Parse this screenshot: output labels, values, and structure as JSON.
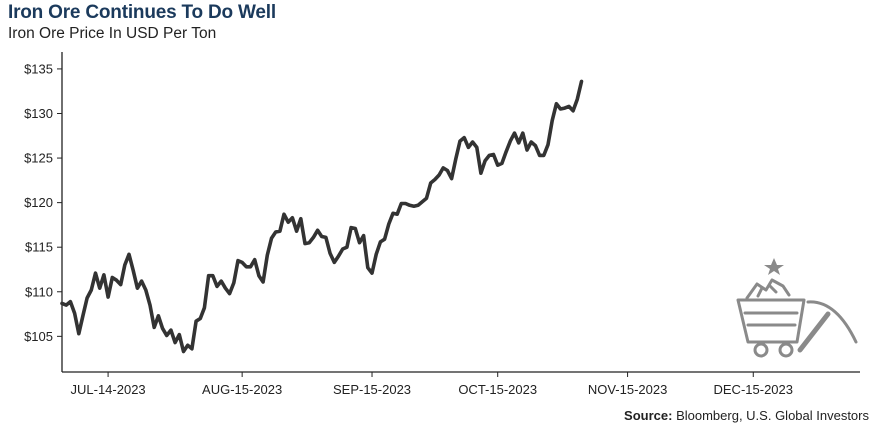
{
  "title": "Iron Ore Continues To Do Well",
  "subtitle": "Iron Ore Price In USD Per Ton",
  "source_label": "Source:",
  "source_text": "Bloomberg, U.S. Global Investors",
  "colors": {
    "title": "#1b3a5c",
    "line": "#333333",
    "icon": "#8a8a8a"
  },
  "icon": "mining-cart-pickaxe-icon",
  "chart_data": {
    "type": "line",
    "title": "Iron Ore Continues To Do Well",
    "subtitle": "Iron Ore Price In USD Per Ton",
    "ylim": [
      101,
      136
    ],
    "y_ticks": [
      105,
      110,
      115,
      120,
      125,
      130,
      135
    ],
    "y_tick_labels": [
      "$105",
      "$110",
      "$115",
      "$120",
      "$125",
      "$130",
      "$135"
    ],
    "x_tick_labels": [
      "JUL-14-2023",
      "AUG-15-2023",
      "SEP-15-2023",
      "OCT-15-2023",
      "NOV-15-2023",
      "DEC-15-2023"
    ],
    "x_tick_dates": [
      "2023-07-14",
      "2023-08-15",
      "2023-09-15",
      "2023-10-15",
      "2023-11-15",
      "2023-12-15"
    ],
    "xlim": [
      "2023-07-03",
      "2024-01-09"
    ],
    "grid": false,
    "series": [
      {
        "values": [
          [
            "2023-07-03",
            108.7
          ],
          [
            "2023-07-04",
            108.5
          ],
          [
            "2023-07-05",
            108.9
          ],
          [
            "2023-07-06",
            107.6
          ],
          [
            "2023-07-07",
            105.3
          ],
          [
            "2023-07-08",
            107.3
          ],
          [
            "2023-07-09",
            109.3
          ],
          [
            "2023-07-10",
            110.2
          ],
          [
            "2023-07-11",
            112.1
          ],
          [
            "2023-07-12",
            110.4
          ],
          [
            "2023-07-13",
            111.9
          ],
          [
            "2023-07-14",
            109.4
          ],
          [
            "2023-07-15",
            111.6
          ],
          [
            "2023-07-16",
            111.3
          ],
          [
            "2023-07-17",
            110.8
          ],
          [
            "2023-07-18",
            113.0
          ],
          [
            "2023-07-19",
            114.2
          ],
          [
            "2023-07-20",
            112.4
          ],
          [
            "2023-07-21",
            110.4
          ],
          [
            "2023-07-22",
            111.2
          ],
          [
            "2023-07-23",
            110.2
          ],
          [
            "2023-07-24",
            108.5
          ],
          [
            "2023-07-25",
            106.0
          ],
          [
            "2023-07-26",
            107.3
          ],
          [
            "2023-07-27",
            105.9
          ],
          [
            "2023-07-28",
            105.1
          ],
          [
            "2023-07-29",
            105.7
          ],
          [
            "2023-07-30",
            104.3
          ],
          [
            "2023-07-31",
            105.2
          ],
          [
            "2023-08-01",
            103.3
          ],
          [
            "2023-08-02",
            104.0
          ],
          [
            "2023-08-03",
            103.6
          ],
          [
            "2023-08-04",
            106.7
          ],
          [
            "2023-08-05",
            107.0
          ],
          [
            "2023-08-06",
            108.2
          ],
          [
            "2023-08-07",
            111.8
          ],
          [
            "2023-08-08",
            111.8
          ],
          [
            "2023-08-09",
            110.6
          ],
          [
            "2023-08-10",
            111.2
          ],
          [
            "2023-08-11",
            110.4
          ],
          [
            "2023-08-12",
            109.8
          ],
          [
            "2023-08-13",
            111.0
          ],
          [
            "2023-08-14",
            113.5
          ],
          [
            "2023-08-15",
            113.3
          ],
          [
            "2023-08-16",
            112.8
          ],
          [
            "2023-08-17",
            112.8
          ],
          [
            "2023-08-18",
            113.6
          ],
          [
            "2023-08-19",
            111.8
          ],
          [
            "2023-08-20",
            111.1
          ],
          [
            "2023-08-21",
            114.1
          ],
          [
            "2023-08-22",
            116.0
          ],
          [
            "2023-08-23",
            116.7
          ],
          [
            "2023-08-24",
            116.8
          ],
          [
            "2023-08-25",
            118.7
          ],
          [
            "2023-08-26",
            117.8
          ],
          [
            "2023-08-27",
            118.3
          ],
          [
            "2023-08-28",
            116.8
          ],
          [
            "2023-08-29",
            118.2
          ],
          [
            "2023-08-30",
            115.4
          ],
          [
            "2023-08-31",
            115.5
          ],
          [
            "2023-09-01",
            116.1
          ],
          [
            "2023-09-02",
            116.9
          ],
          [
            "2023-09-03",
            116.2
          ],
          [
            "2023-09-04",
            116.1
          ],
          [
            "2023-09-05",
            114.3
          ],
          [
            "2023-09-06",
            113.3
          ],
          [
            "2023-09-07",
            114.0
          ],
          [
            "2023-09-08",
            114.8
          ],
          [
            "2023-09-09",
            115.0
          ],
          [
            "2023-09-10",
            117.2
          ],
          [
            "2023-09-11",
            117.1
          ],
          [
            "2023-09-12",
            115.5
          ],
          [
            "2023-09-13",
            116.3
          ],
          [
            "2023-09-14",
            112.7
          ],
          [
            "2023-09-15",
            112.1
          ],
          [
            "2023-09-16",
            114.2
          ],
          [
            "2023-09-17",
            115.6
          ],
          [
            "2023-09-18",
            115.9
          ],
          [
            "2023-09-19",
            117.6
          ],
          [
            "2023-09-20",
            118.8
          ],
          [
            "2023-09-21",
            118.7
          ],
          [
            "2023-09-22",
            119.9
          ],
          [
            "2023-09-23",
            119.9
          ],
          [
            "2023-09-24",
            119.7
          ],
          [
            "2023-09-25",
            119.6
          ],
          [
            "2023-09-26",
            119.7
          ],
          [
            "2023-09-27",
            120.1
          ],
          [
            "2023-09-28",
            120.5
          ],
          [
            "2023-09-29",
            122.2
          ],
          [
            "2023-09-30",
            122.6
          ],
          [
            "2023-10-01",
            123.1
          ],
          [
            "2023-10-02",
            123.9
          ],
          [
            "2023-10-03",
            123.6
          ],
          [
            "2023-10-04",
            122.7
          ],
          [
            "2023-10-05",
            124.9
          ],
          [
            "2023-10-06",
            126.9
          ],
          [
            "2023-10-07",
            127.3
          ],
          [
            "2023-10-08",
            126.2
          ],
          [
            "2023-10-09",
            126.8
          ],
          [
            "2023-10-10",
            126.2
          ],
          [
            "2023-10-11",
            123.3
          ],
          [
            "2023-10-12",
            124.7
          ],
          [
            "2023-10-13",
            125.3
          ],
          [
            "2023-10-14",
            125.4
          ],
          [
            "2023-10-15",
            124.2
          ],
          [
            "2023-10-16",
            124.4
          ],
          [
            "2023-10-17",
            125.7
          ],
          [
            "2023-10-18",
            126.9
          ],
          [
            "2023-10-19",
            127.8
          ],
          [
            "2023-10-20",
            126.7
          ],
          [
            "2023-10-21",
            127.8
          ],
          [
            "2023-10-22",
            125.9
          ],
          [
            "2023-10-23",
            126.8
          ],
          [
            "2023-10-24",
            126.4
          ],
          [
            "2023-10-25",
            125.3
          ],
          [
            "2023-10-26",
            125.3
          ],
          [
            "2023-10-27",
            126.5
          ],
          [
            "2023-10-28",
            129.2
          ],
          [
            "2023-10-29",
            131.1
          ],
          [
            "2023-10-30",
            130.5
          ],
          [
            "2023-10-31",
            130.6
          ],
          [
            "2023-11-01",
            130.8
          ],
          [
            "2023-11-02",
            130.3
          ],
          [
            "2023-11-03",
            131.6
          ],
          [
            "2023-11-04",
            133.6
          ]
        ]
      }
    ]
  }
}
